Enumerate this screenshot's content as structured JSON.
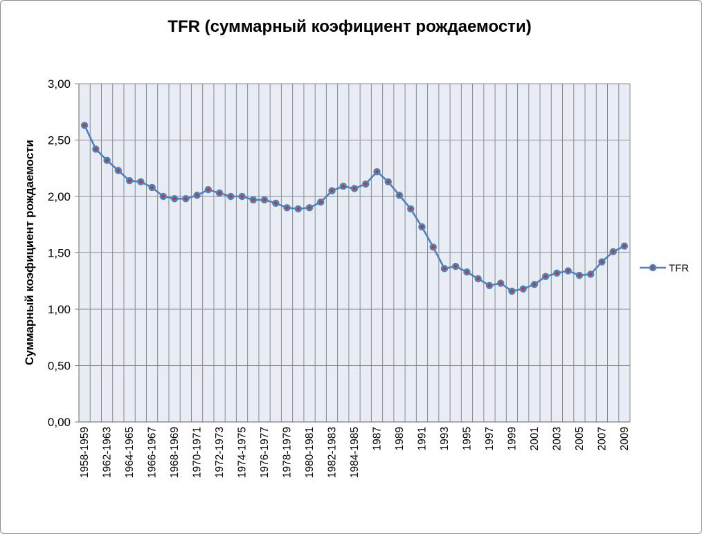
{
  "chart_data": {
    "type": "line",
    "title": "TFR (суммарный коэфициент рождаемости)",
    "ylabel": "Суммарный коэфициент рождаемости",
    "xlabel": "",
    "ylim": [
      0,
      3
    ],
    "ytick_labels": [
      "0,00",
      "0,50",
      "1,00",
      "1,50",
      "2,00",
      "2,50",
      "3,00"
    ],
    "grid": "both",
    "legend_position": "right",
    "colors": {
      "line": "#4f81bd",
      "marker_center": "#c0392b",
      "plot_bg": "#e8ecf4",
      "grid": "#8a8a8a"
    },
    "categories": [
      "1958-1959",
      "",
      "1962-1963",
      "",
      "1964-1965",
      "",
      "1966-1967",
      "",
      "1968-1969",
      "",
      "1970-1971",
      "",
      "1972-1973",
      "",
      "1974-1975",
      "",
      "1976-1977",
      "",
      "1978-1979",
      "",
      "1980-1981",
      "",
      "1982-1983",
      "",
      "1984-1985",
      "",
      "1987",
      "",
      "1989",
      "",
      "1991",
      "",
      "1993",
      "",
      "1995",
      "",
      "1997",
      "",
      "1999",
      "",
      "2001",
      "",
      "2003",
      "",
      "2005",
      "",
      "2007",
      "",
      "2009"
    ],
    "series": [
      {
        "name": "TFR",
        "values": [
          2.63,
          2.42,
          2.32,
          2.23,
          2.14,
          2.13,
          2.08,
          2.0,
          1.98,
          1.98,
          2.01,
          2.06,
          2.03,
          2.0,
          2.0,
          1.97,
          1.97,
          1.94,
          1.9,
          1.89,
          1.9,
          1.95,
          2.05,
          2.09,
          2.07,
          2.11,
          2.22,
          2.13,
          2.01,
          1.89,
          1.73,
          1.55,
          1.36,
          1.38,
          1.33,
          1.27,
          1.21,
          1.23,
          1.16,
          1.18,
          1.22,
          1.29,
          1.32,
          1.34,
          1.3,
          1.31,
          1.42,
          1.51,
          1.56
        ]
      }
    ]
  }
}
